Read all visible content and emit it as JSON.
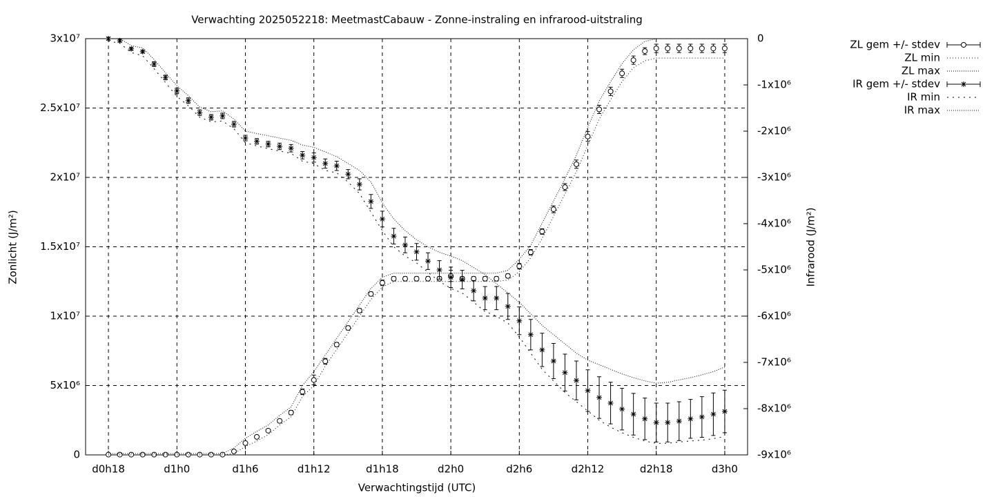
{
  "chart_data": {
    "type": "errorbar-line",
    "title": "Verwachting 2025052218: MeetmastCabauw - Zonne-instraling en infrarood-uitstraling",
    "xlabel": "Verwachtingstijd (UTC)",
    "ylabel": "Zonlicht (J/m²)",
    "y2label": "Infrarood (J/m²)",
    "xlim": [
      16,
      74
    ],
    "xticks": [
      {
        "value": 18,
        "label": "d0h18"
      },
      {
        "value": 24,
        "label": "d1h0"
      },
      {
        "value": 30,
        "label": "d1h6"
      },
      {
        "value": 36,
        "label": "d1h12"
      },
      {
        "value": 42,
        "label": "d1h18"
      },
      {
        "value": 48,
        "label": "d2h0"
      },
      {
        "value": 54,
        "label": "d2h6"
      },
      {
        "value": 60,
        "label": "d2h12"
      },
      {
        "value": 66,
        "label": "d2h18"
      },
      {
        "value": 72,
        "label": "d3h0"
      }
    ],
    "ylim": [
      0,
      30000000
    ],
    "yticks": [
      0,
      {
        "value": 5000000,
        "label": "5x10⁶"
      },
      {
        "value": 10000000,
        "label": "1x10⁷"
      },
      {
        "value": 15000000,
        "label": "1.5x10⁷"
      },
      {
        "value": 20000000,
        "label": "2x10⁷"
      },
      {
        "value": 25000000,
        "label": "2.5x10⁷"
      },
      {
        "value": 30000000,
        "label": "3x10⁷"
      }
    ],
    "y2lim": [
      -9000000,
      0
    ],
    "y2ticks": [
      {
        "value": -9000000,
        "label": "-9x10⁶"
      },
      {
        "value": -8000000,
        "label": "-8x10⁶"
      },
      {
        "value": -7000000,
        "label": "-7x10⁶"
      },
      {
        "value": -6000000,
        "label": "-6x10⁶"
      },
      {
        "value": -5000000,
        "label": "-5x10⁶"
      },
      {
        "value": -4000000,
        "label": "-4x10⁶"
      },
      {
        "value": -3000000,
        "label": "-3x10⁶"
      },
      {
        "value": -2000000,
        "label": "-2x10⁶"
      },
      {
        "value": -1000000,
        "label": "-1x10⁶"
      },
      0
    ],
    "grid": true,
    "legend": "top-right",
    "x": [
      18,
      19,
      20,
      21,
      22,
      23,
      24,
      25,
      26,
      27,
      28,
      29,
      30,
      31,
      32,
      33,
      34,
      35,
      36,
      37,
      38,
      39,
      40,
      41,
      42,
      43,
      44,
      45,
      46,
      47,
      48,
      49,
      50,
      51,
      52,
      53,
      54,
      55,
      56,
      57,
      58,
      59,
      60,
      61,
      62,
      63,
      64,
      65,
      66,
      67,
      68,
      69,
      70,
      71,
      72
    ],
    "series": [
      {
        "name": "ZL gem +/- stdev",
        "color": "#000000",
        "marker": "circle",
        "values": [
          20000,
          20000,
          20000,
          20000,
          20000,
          20000,
          20000,
          20000,
          20000,
          20000,
          20000,
          250000,
          850000,
          1300000,
          1750000,
          2450000,
          3050000,
          4550000,
          5400000,
          6750000,
          7950000,
          9150000,
          10400000,
          11600000,
          12400000,
          12700000,
          12700000,
          12700000,
          12700000,
          12700000,
          12900000,
          12700000,
          12700000,
          12700000,
          12700000,
          12900000,
          13600000,
          14600000,
          16100000,
          17700000,
          19300000,
          20950000,
          22950000,
          24900000,
          26200000,
          27500000,
          28450000,
          29100000,
          29300000,
          29300000,
          29300000,
          29300000,
          29300000,
          29300000,
          29300000
        ],
        "errors": [
          50000,
          50000,
          50000,
          50000,
          50000,
          50000,
          50000,
          50000,
          50000,
          50000,
          50000,
          50000,
          100000,
          100000,
          100000,
          120000,
          150000,
          200000,
          350000,
          200000,
          150000,
          150000,
          150000,
          150000,
          200000,
          150000,
          150000,
          150000,
          150000,
          150000,
          400000,
          150000,
          150000,
          150000,
          150000,
          150000,
          200000,
          200000,
          200000,
          250000,
          250000,
          300000,
          350000,
          300000,
          300000,
          300000,
          300000,
          250000,
          300000,
          300000,
          300000,
          300000,
          300000,
          300000,
          300000
        ]
      },
      {
        "name": "ZL min",
        "color": "#000000",
        "dash": "1,3",
        "values": [
          0,
          0,
          0,
          0,
          0,
          0,
          0,
          0,
          0,
          0,
          0,
          100000,
          600000,
          1000000,
          1450000,
          2150000,
          2750000,
          4200000,
          5000000,
          6400000,
          7600000,
          8800000,
          10000000,
          11200000,
          12100000,
          12500000,
          12500000,
          12500000,
          12500000,
          12500000,
          12500000,
          12500000,
          12500000,
          12500000,
          12500000,
          12600000,
          13200000,
          14200000,
          15600000,
          17200000,
          18800000,
          20400000,
          22300000,
          24200000,
          25600000,
          26900000,
          27900000,
          28400000,
          28600000,
          28600000,
          28600000,
          28600000,
          28600000,
          28600000,
          28600000
        ]
      },
      {
        "name": "ZL max",
        "color": "#000000",
        "dash": "1,2",
        "values": [
          100000,
          100000,
          100000,
          100000,
          100000,
          100000,
          100000,
          100000,
          100000,
          100000,
          100000,
          500000,
          1200000,
          1700000,
          2150000,
          2850000,
          3450000,
          5000000,
          6000000,
          7200000,
          8400000,
          9600000,
          10800000,
          12000000,
          12800000,
          13100000,
          13100000,
          13100000,
          13100000,
          13100000,
          13100000,
          13100000,
          13100000,
          13100000,
          13100000,
          13300000,
          14100000,
          15100000,
          16700000,
          18300000,
          19900000,
          21600000,
          23600000,
          25500000,
          26900000,
          28200000,
          29200000,
          29800000,
          30000000,
          30000000,
          30000000,
          30000000,
          30000000,
          30000000,
          30000000
        ]
      },
      {
        "name": "IR gem +/- stdev",
        "color": "#000000",
        "marker": "star",
        "axis": "y2",
        "values": [
          0,
          -45000,
          -220000,
          -280000,
          -550000,
          -840000,
          -1130000,
          -1340000,
          -1600000,
          -1700000,
          -1670000,
          -1850000,
          -2150000,
          -2220000,
          -2280000,
          -2330000,
          -2370000,
          -2520000,
          -2570000,
          -2700000,
          -2750000,
          -2930000,
          -3150000,
          -3520000,
          -3900000,
          -4270000,
          -4460000,
          -4610000,
          -4810000,
          -5000000,
          -5160000,
          -5210000,
          -5450000,
          -5610000,
          -5610000,
          -5790000,
          -6100000,
          -6400000,
          -6730000,
          -6970000,
          -7220000,
          -7390000,
          -7610000,
          -7760000,
          -7880000,
          -8010000,
          -8120000,
          -8220000,
          -8300000,
          -8300000,
          -8270000,
          -8220000,
          -8180000,
          -8120000,
          -8060000
        ],
        "errors": [
          30000,
          30000,
          30000,
          30000,
          50000,
          50000,
          60000,
          60000,
          60000,
          60000,
          60000,
          60000,
          60000,
          60000,
          60000,
          70000,
          80000,
          80000,
          100000,
          100000,
          100000,
          100000,
          120000,
          150000,
          170000,
          170000,
          170000,
          180000,
          180000,
          200000,
          220000,
          200000,
          220000,
          250000,
          250000,
          280000,
          300000,
          330000,
          360000,
          380000,
          400000,
          420000,
          450000,
          450000,
          450000,
          450000,
          450000,
          450000,
          420000,
          420000,
          420000,
          420000,
          440000,
          460000,
          460000
        ]
      },
      {
        "name": "IR min",
        "color": "#000000",
        "dash": "2,6",
        "axis": "y2",
        "values": [
          -50000,
          -100000,
          -300000,
          -370000,
          -650000,
          -950000,
          -1250000,
          -1450000,
          -1700000,
          -1800000,
          -1780000,
          -1950000,
          -2250000,
          -2320000,
          -2380000,
          -2430000,
          -2480000,
          -2650000,
          -2700000,
          -2850000,
          -2900000,
          -3100000,
          -3350000,
          -3750000,
          -4150000,
          -4500000,
          -4700000,
          -4850000,
          -5050000,
          -5250000,
          -5400000,
          -5500000,
          -5700000,
          -5900000,
          -6000000,
          -6150000,
          -6450000,
          -6800000,
          -7150000,
          -7400000,
          -7650000,
          -7850000,
          -8050000,
          -8250000,
          -8400000,
          -8520000,
          -8620000,
          -8700000,
          -8750000,
          -8750000,
          -8720000,
          -8700000,
          -8680000,
          -8650000,
          -8600000
        ]
      },
      {
        "name": "IR max",
        "color": "#000000",
        "dash": "1,2",
        "axis": "y2",
        "values": [
          0,
          0,
          -150000,
          -200000,
          -450000,
          -740000,
          -1020000,
          -1230000,
          -1480000,
          -1580000,
          -1560000,
          -1740000,
          -2000000,
          -2050000,
          -2100000,
          -2150000,
          -2200000,
          -2300000,
          -2350000,
          -2450000,
          -2550000,
          -2700000,
          -2850000,
          -3100000,
          -3550000,
          -3900000,
          -4150000,
          -4350000,
          -4500000,
          -4620000,
          -4700000,
          -4800000,
          -4950000,
          -5100000,
          -5300000,
          -5500000,
          -5700000,
          -5950000,
          -6200000,
          -6400000,
          -6600000,
          -6800000,
          -6950000,
          -7050000,
          -7150000,
          -7250000,
          -7330000,
          -7400000,
          -7450000,
          -7430000,
          -7380000,
          -7330000,
          -7270000,
          -7200000,
          -7100000
        ]
      }
    ]
  }
}
